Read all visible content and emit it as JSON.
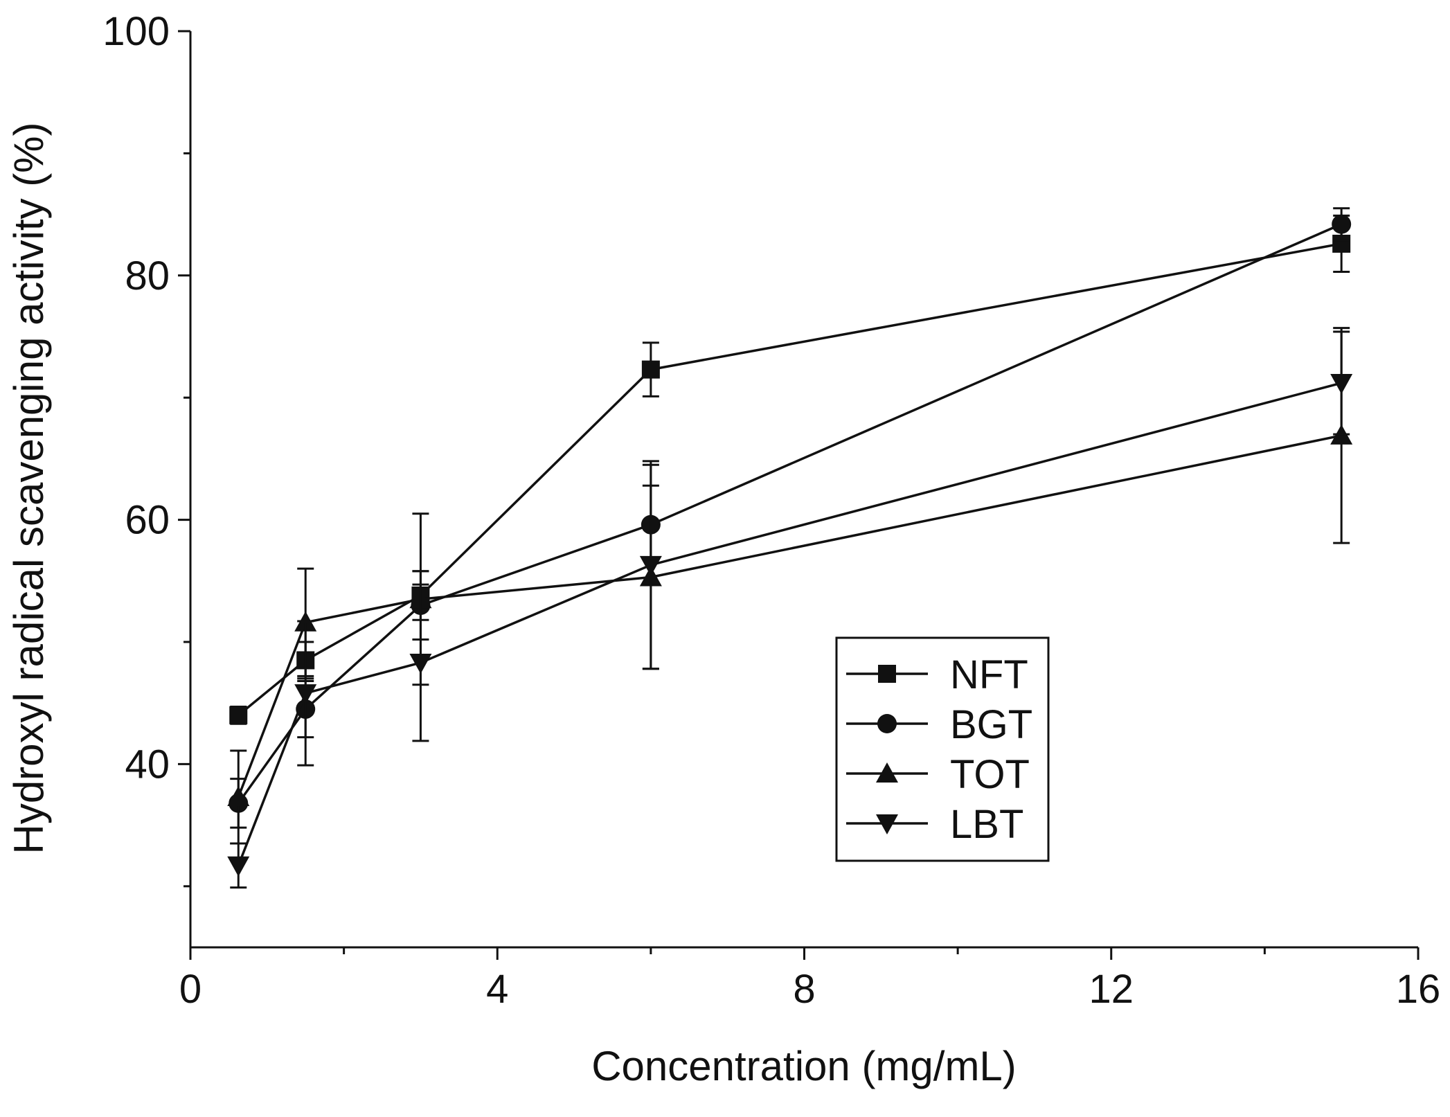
{
  "chart_data": {
    "type": "line",
    "xlabel": "Concentration (mg/mL)",
    "ylabel": "Hydroxyl radical scavenging activity (%)",
    "xlim": [
      0,
      16
    ],
    "ylim": [
      25,
      100
    ],
    "x_ticks": [
      0,
      4,
      8,
      12,
      16
    ],
    "x_tick_labels": [
      "0",
      "4",
      "8",
      "12",
      "16"
    ],
    "x_minor_ticks": [
      2,
      6,
      10,
      14
    ],
    "y_ticks": [
      40,
      60,
      80,
      100
    ],
    "y_tick_labels": [
      "40",
      "60",
      "80",
      "100"
    ],
    "y_minor_ticks": [
      30,
      50,
      70,
      90
    ],
    "grid": false,
    "legend_position": "center-right",
    "marker_color": "#111111",
    "series": [
      {
        "name": "NFT",
        "marker": "square",
        "points": [
          {
            "x": 0.625,
            "y": 44.0,
            "err": 0.7
          },
          {
            "x": 1.5,
            "y": 48.5,
            "err": 1.5
          },
          {
            "x": 3.0,
            "y": 53.8,
            "err": 2.0
          },
          {
            "x": 6.0,
            "y": 72.3,
            "err": 2.2
          },
          {
            "x": 15.0,
            "y": 82.6,
            "err": 2.3
          }
        ]
      },
      {
        "name": "BGT",
        "marker": "circle",
        "points": [
          {
            "x": 0.625,
            "y": 36.8,
            "err": 2.0
          },
          {
            "x": 1.5,
            "y": 44.5,
            "err": 2.3
          },
          {
            "x": 3.0,
            "y": 53.0,
            "err": 2.8
          },
          {
            "x": 6.0,
            "y": 59.6,
            "err": 4.9
          },
          {
            "x": 15.0,
            "y": 84.2,
            "err": 1.3
          }
        ]
      },
      {
        "name": "TOT",
        "marker": "triangle-up",
        "points": [
          {
            "x": 0.625,
            "y": 37.3,
            "err": 3.8
          },
          {
            "x": 1.5,
            "y": 51.6,
            "err": 4.4
          },
          {
            "x": 3.0,
            "y": 53.5,
            "err": 7.0
          },
          {
            "x": 6.0,
            "y": 55.3,
            "err": 7.5
          },
          {
            "x": 15.0,
            "y": 66.9,
            "err": 8.8
          }
        ]
      },
      {
        "name": "LBT",
        "marker": "triangle-down",
        "points": [
          {
            "x": 0.625,
            "y": 31.7,
            "err": 1.8
          },
          {
            "x": 1.5,
            "y": 45.8,
            "err": 5.9
          },
          {
            "x": 3.0,
            "y": 48.3,
            "err": 6.4
          },
          {
            "x": 6.0,
            "y": 56.3,
            "err": 8.5
          },
          {
            "x": 15.0,
            "y": 71.2,
            "err": 4.2
          }
        ]
      }
    ]
  }
}
